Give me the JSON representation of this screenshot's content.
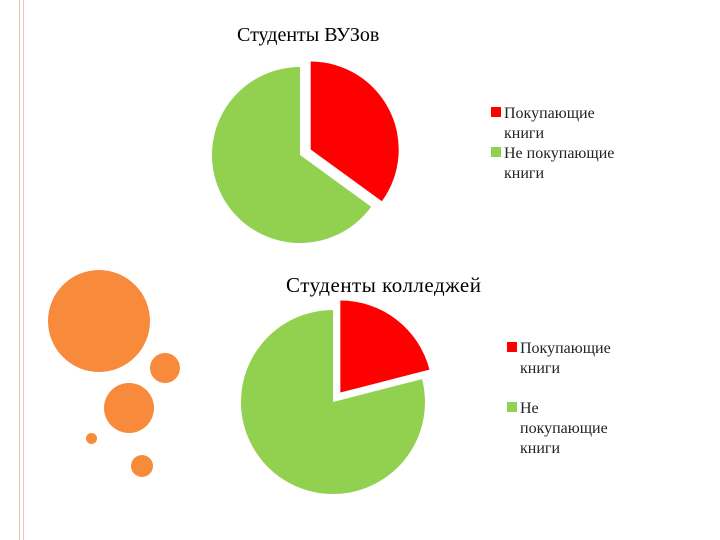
{
  "colors": {
    "buying": "#ff0000",
    "not_buying": "#92d050",
    "decor_orange": "#f88a3c",
    "edge_line": "#f4c4b8"
  },
  "decor": {
    "icon": "orange-circles-decoration"
  },
  "chart_data": [
    {
      "type": "pie",
      "title": "Студенты ВУЗов",
      "categories": [
        "Покупающие книги",
        "Не покупающие книги"
      ],
      "values": [
        35,
        65
      ],
      "exploded": [
        true,
        false
      ],
      "legend": {
        "position": "right"
      }
    },
    {
      "type": "pie",
      "title": "Студенты колледжей",
      "categories": [
        "Покупающие книги",
        "Не покупающие книги"
      ],
      "values": [
        21,
        79
      ],
      "exploded": [
        true,
        false
      ],
      "legend": {
        "position": "right"
      }
    }
  ],
  "legend1": [
    {
      "lines": [
        "Покупающие",
        "книги"
      ]
    },
    {
      "lines": [
        "Не  покупающие",
        "книги"
      ]
    }
  ],
  "legend2": [
    {
      "lines": [
        "Покупающие",
        "книги"
      ]
    },
    {
      "lines": [
        "Не",
        "покупающие",
        "книги"
      ]
    }
  ]
}
